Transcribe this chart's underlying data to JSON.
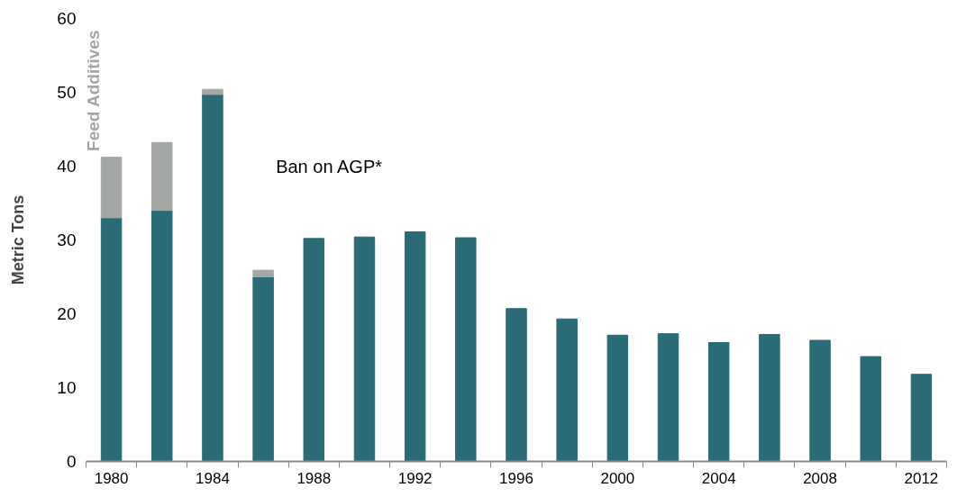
{
  "chart_data": {
    "type": "bar",
    "stacked": true,
    "ylabel": "Metric Tons",
    "categories": [
      "1980",
      null,
      "1984",
      null,
      "1988",
      null,
      "1992",
      null,
      "1996",
      null,
      "2000",
      null,
      "2004",
      null,
      "2008",
      null,
      "2012"
    ],
    "series": [
      {
        "color": "#2a6b75",
        "values": [
          33.0,
          34.0,
          49.7,
          25.0,
          30.2,
          30.4,
          31.1,
          30.3,
          20.7,
          19.3,
          17.1,
          17.3,
          16.1,
          17.2,
          16.4,
          14.2,
          11.8
        ]
      },
      {
        "name": "Feed Additives",
        "color": "#a4a8a4",
        "values": [
          8.2,
          9.2,
          0.7,
          0.9,
          null,
          null,
          null,
          null,
          null,
          null,
          null,
          null,
          null,
          null,
          null,
          null,
          null
        ]
      }
    ],
    "annotations": [
      "Ban on AGP*"
    ],
    "ylim": [
      0,
      60
    ],
    "yticks": [
      0,
      10,
      20,
      30,
      40,
      50,
      60
    ],
    "grid": false
  }
}
